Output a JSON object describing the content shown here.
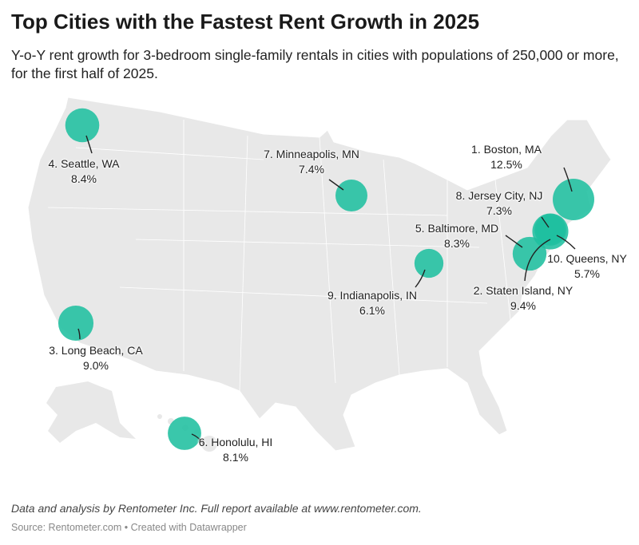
{
  "title": "Top Cities with the Fastest Rent Growth in 2025",
  "subtitle": "Y-o-Y rent growth for 3-bedroom single-family rentals in cities with populations of 250,000 or more, for the first half of 2025.",
  "colors": {
    "bubble": "#1fbf9f",
    "land": "#e8e8e8",
    "border": "#ffffff"
  },
  "cities": [
    {
      "name": "1. Boston, MA",
      "value": "12.5%",
      "growth": 12.5
    },
    {
      "name": "2. Staten Island, NY",
      "value": "9.4%",
      "growth": 9.4
    },
    {
      "name": "3. Long Beach, CA",
      "value": "9.0%",
      "growth": 9.0
    },
    {
      "name": "4. Seattle, WA",
      "value": "8.4%",
      "growth": 8.4
    },
    {
      "name": "5. Baltimore, MD",
      "value": "8.3%",
      "growth": 8.3
    },
    {
      "name": "6. Honolulu, HI",
      "value": "8.1%",
      "growth": 8.1
    },
    {
      "name": "7. Minneapolis, MN",
      "value": "7.4%",
      "growth": 7.4
    },
    {
      "name": "8. Jersey City, NJ",
      "value": "7.3%",
      "growth": 7.3
    },
    {
      "name": "9. Indianapolis, IN",
      "value": "6.1%",
      "growth": 6.1
    },
    {
      "name": "10. Queens, NY",
      "value": "5.7%",
      "growth": 5.7
    }
  ],
  "footer": {
    "note": "Data and analysis by Rentometer Inc. Full report available at www.rentometer.com.",
    "source": "Source: Rentometer.com • Created with Datawrapper"
  }
}
